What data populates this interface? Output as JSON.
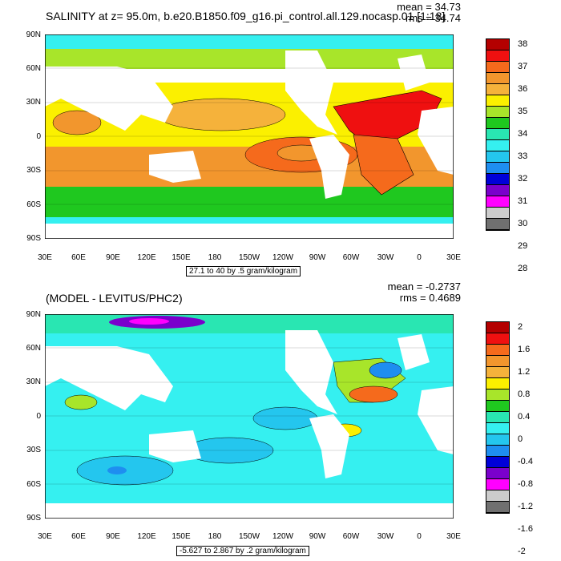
{
  "chart_data": [
    {
      "type": "heatmap",
      "title": "SALINITY at z=  95.0m, b.e20.B1850.f09_g16.pi_control.all.129.nocasp.01 [1:18]",
      "stats": {
        "mean": "mean = 34.73",
        "rms": "rms = 34.74"
      },
      "info": "27.1 to 40 by .5 gram/kilogram",
      "y_ticks": [
        "90N",
        "60N",
        "30N",
        "0",
        "30S",
        "60S",
        "90S"
      ],
      "x_ticks": [
        "30E",
        "60E",
        "90E",
        "120E",
        "150E",
        "180",
        "150W",
        "120W",
        "90W",
        "60W",
        "30W",
        "0",
        "30E"
      ],
      "colorbar_labels": [
        "38",
        "37",
        "36",
        "35",
        "34",
        "33",
        "32",
        "31",
        "30",
        "29",
        "28"
      ],
      "colorbar_colors": [
        "#b40000",
        "#ef1010",
        "#f56a1c",
        "#f2962d",
        "#f5b23b",
        "#fbf000",
        "#a8e52a",
        "#1fc81f",
        "#29e6b2",
        "#35f0f0",
        "#24c6ee",
        "#1e8ef0",
        "#0000d8",
        "#7a00cc",
        "#ff00ff",
        "#cccccc",
        "#707070"
      ]
    },
    {
      "type": "heatmap",
      "title": "(MODEL - LEVITUS/PHC2)",
      "stats": {
        "mean": "mean = -0.2737",
        "rms": "rms = 0.4689"
      },
      "info": "-5.627 to 2.867 by .2 gram/kilogram",
      "y_ticks": [
        "90N",
        "60N",
        "30N",
        "0",
        "30S",
        "60S",
        "90S"
      ],
      "x_ticks": [
        "30E",
        "60E",
        "90E",
        "120E",
        "150E",
        "180",
        "150W",
        "120W",
        "90W",
        "60W",
        "30W",
        "0",
        "30E"
      ],
      "colorbar_labels": [
        "2",
        "1.6",
        "1.2",
        "0.8",
        "0.4",
        "0",
        "-0.4",
        "-0.8",
        "-1.2",
        "-1.6",
        "-2"
      ],
      "colorbar_colors": [
        "#b40000",
        "#ef1010",
        "#f56a1c",
        "#f2962d",
        "#f5b23b",
        "#fbf000",
        "#a8e52a",
        "#1fc81f",
        "#29e6b2",
        "#35f0f0",
        "#24c6ee",
        "#1e8ef0",
        "#0000d8",
        "#7a00cc",
        "#ff00ff",
        "#cccccc",
        "#707070"
      ]
    }
  ]
}
